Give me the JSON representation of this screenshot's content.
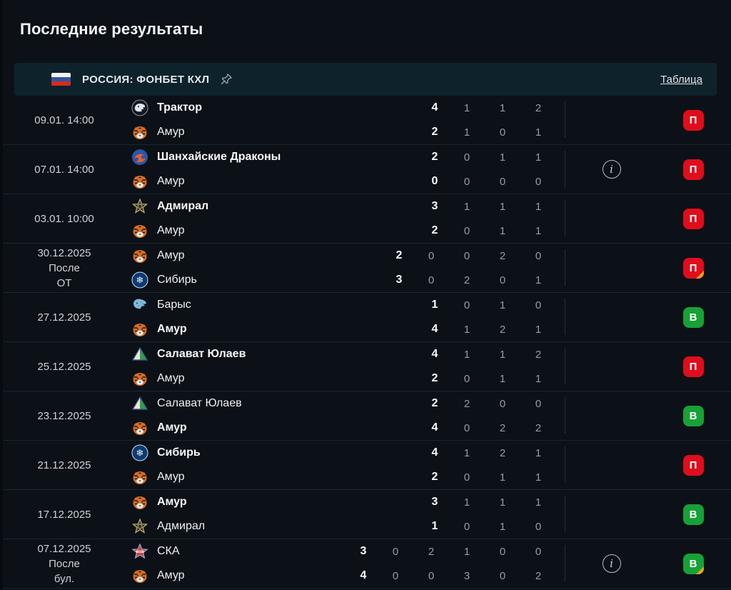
{
  "page": {
    "title": "Последние результаты"
  },
  "league_header": {
    "flag_icon": "russia-flag-icon",
    "label": "РОССИЯ: ФОНБЕТ КХЛ",
    "pin_icon": "pin-icon",
    "table_link": "Таблица"
  },
  "colors": {
    "background": "#0c1117",
    "panel": "#0e222b",
    "win_green": "#17a137",
    "loss_red": "#e00d1c",
    "ot_orange": "#f0a11c",
    "text_primary": "#f2f5f7",
    "text_muted": "#939da6"
  },
  "matches": [
    {
      "date_lines": [
        "09.01. 14:00"
      ],
      "home": {
        "team": "Трактор",
        "logo": "traktor",
        "bold": true,
        "score": "4",
        "periods": [
          "1",
          "1",
          "2"
        ]
      },
      "away": {
        "team": "Амур",
        "logo": "amur",
        "bold": false,
        "score": "2",
        "periods": [
          "1",
          "0",
          "1"
        ]
      },
      "info": false,
      "result": {
        "label": "П",
        "type": "loss",
        "corner": false
      }
    },
    {
      "date_lines": [
        "07.01. 14:00"
      ],
      "home": {
        "team": "Шанхайские Драконы",
        "logo": "dragons",
        "bold": true,
        "score": "2",
        "periods": [
          "0",
          "1",
          "1"
        ]
      },
      "away": {
        "team": "Амур",
        "logo": "amur",
        "bold": false,
        "score": "0",
        "periods": [
          "0",
          "0",
          "0"
        ]
      },
      "info": true,
      "result": {
        "label": "П",
        "type": "loss",
        "corner": false
      }
    },
    {
      "date_lines": [
        "03.01. 10:00"
      ],
      "home": {
        "team": "Адмирал",
        "logo": "admiral",
        "bold": true,
        "score": "3",
        "periods": [
          "1",
          "1",
          "1"
        ]
      },
      "away": {
        "team": "Амур",
        "logo": "amur",
        "bold": false,
        "score": "2",
        "periods": [
          "0",
          "1",
          "1"
        ]
      },
      "info": false,
      "result": {
        "label": "П",
        "type": "loss",
        "corner": false
      }
    },
    {
      "date_lines": [
        "30.12.2025",
        "После",
        "ОТ"
      ],
      "home": {
        "team": "Амур",
        "logo": "amur",
        "bold": false,
        "score": "2",
        "periods": [
          "0",
          "0",
          "2",
          "0"
        ]
      },
      "away": {
        "team": "Сибирь",
        "logo": "sibir",
        "bold": false,
        "score": "3",
        "periods": [
          "0",
          "2",
          "0",
          "1"
        ]
      },
      "info": false,
      "result": {
        "label": "П",
        "type": "loss",
        "corner": true
      }
    },
    {
      "date_lines": [
        "27.12.2025"
      ],
      "home": {
        "team": "Барыс",
        "logo": "barys",
        "bold": false,
        "score": "1",
        "periods": [
          "0",
          "1",
          "0"
        ]
      },
      "away": {
        "team": "Амур",
        "logo": "amur",
        "bold": true,
        "score": "4",
        "periods": [
          "1",
          "2",
          "1"
        ]
      },
      "info": false,
      "result": {
        "label": "В",
        "type": "win",
        "corner": false
      }
    },
    {
      "date_lines": [
        "25.12.2025"
      ],
      "home": {
        "team": "Салават Юлаев",
        "logo": "salavat",
        "bold": true,
        "score": "4",
        "periods": [
          "1",
          "1",
          "2"
        ]
      },
      "away": {
        "team": "Амур",
        "logo": "amur",
        "bold": false,
        "score": "2",
        "periods": [
          "0",
          "1",
          "1"
        ]
      },
      "info": false,
      "result": {
        "label": "П",
        "type": "loss",
        "corner": false
      }
    },
    {
      "date_lines": [
        "23.12.2025"
      ],
      "home": {
        "team": "Салават Юлаев",
        "logo": "salavat",
        "bold": false,
        "score": "2",
        "periods": [
          "2",
          "0",
          "0"
        ]
      },
      "away": {
        "team": "Амур",
        "logo": "amur",
        "bold": true,
        "score": "4",
        "periods": [
          "0",
          "2",
          "2"
        ]
      },
      "info": false,
      "result": {
        "label": "В",
        "type": "win",
        "corner": false
      }
    },
    {
      "date_lines": [
        "21.12.2025"
      ],
      "home": {
        "team": "Сибирь",
        "logo": "sibir",
        "bold": true,
        "score": "4",
        "periods": [
          "1",
          "2",
          "1"
        ]
      },
      "away": {
        "team": "Амур",
        "logo": "amur",
        "bold": false,
        "score": "2",
        "periods": [
          "0",
          "1",
          "1"
        ]
      },
      "info": false,
      "result": {
        "label": "П",
        "type": "loss",
        "corner": false
      }
    },
    {
      "date_lines": [
        "17.12.2025"
      ],
      "home": {
        "team": "Амур",
        "logo": "amur",
        "bold": true,
        "score": "3",
        "periods": [
          "1",
          "1",
          "1"
        ]
      },
      "away": {
        "team": "Адмирал",
        "logo": "admiral",
        "bold": false,
        "score": "1",
        "periods": [
          "0",
          "1",
          "0"
        ]
      },
      "info": false,
      "result": {
        "label": "В",
        "type": "win",
        "corner": false
      }
    },
    {
      "date_lines": [
        "07.12.2025",
        "После",
        "бул."
      ],
      "home": {
        "team": "СКА",
        "logo": "ska",
        "bold": false,
        "score": "3",
        "periods": [
          "0",
          "2",
          "1",
          "0",
          "0"
        ]
      },
      "away": {
        "team": "Амур",
        "logo": "amur",
        "bold": false,
        "score": "4",
        "periods": [
          "0",
          "0",
          "3",
          "0",
          "2"
        ]
      },
      "info": true,
      "result": {
        "label": "В",
        "type": "win",
        "corner": true
      }
    }
  ]
}
